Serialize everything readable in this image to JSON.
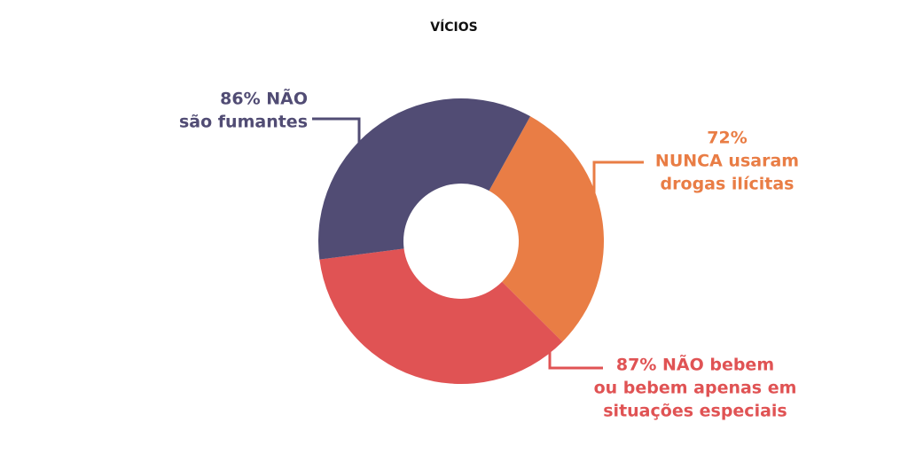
{
  "chart_data": {
    "type": "donut",
    "title": "VÍCIOS",
    "values": [
      72,
      87,
      86
    ],
    "value_labels": [
      [
        "72%",
        "NUNCA usaram",
        "drogas ilícitas"
      ],
      [
        "87% NÃO bebem",
        "ou bebem apenas em",
        "situações especiais"
      ],
      [
        "86% NÃO",
        "são fumantes"
      ]
    ],
    "colors": [
      "#e97d45",
      "#e05354",
      "#514c74"
    ]
  }
}
